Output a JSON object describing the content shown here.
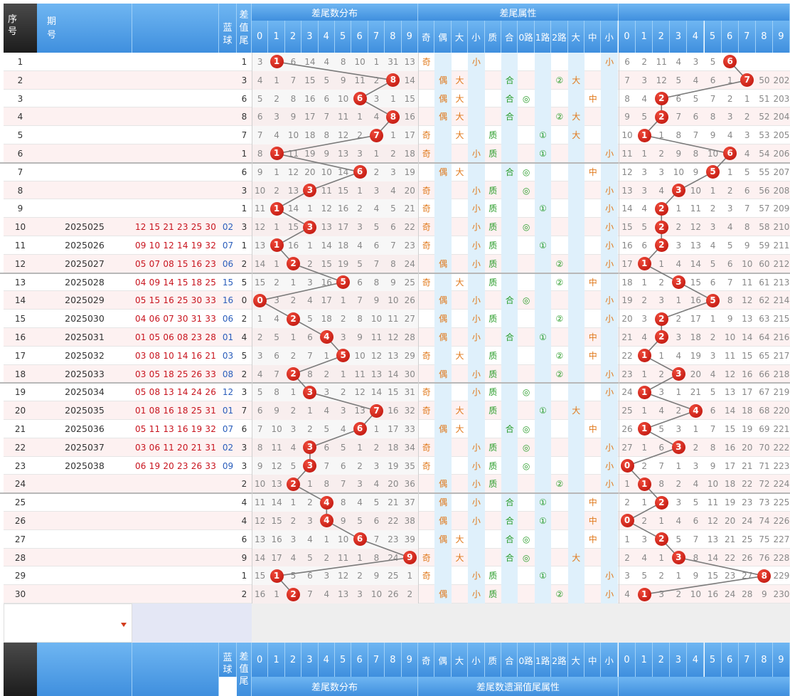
{
  "header": {
    "seq_label": "序\n号",
    "period_label": "期\n号",
    "blue_label": "蓝\n球",
    "diff_tail_label": "差\n值\n尾",
    "dist_group": "差尾数分布",
    "attr_group": "差尾属性",
    "digits": [
      "0",
      "1",
      "2",
      "3",
      "4",
      "5",
      "6",
      "7",
      "8",
      "9"
    ],
    "attrs": [
      "奇",
      "偶",
      "大",
      "小",
      "质",
      "合",
      "0路",
      "1路",
      "2路",
      "大",
      "中",
      "小"
    ],
    "right_digits": [
      "0",
      "1",
      "2",
      "3",
      "4",
      "5",
      "6",
      "7",
      "8",
      "9"
    ]
  },
  "footer": {
    "seq_label": "序\n号",
    "blue_label": "蓝\n球",
    "diff_tail_label": "差\n值\n尾",
    "dist_group": "差尾数分布",
    "attr_group": "差尾数遗漏值尾属性"
  },
  "colors": {
    "accent": "#3f8fde",
    "ball": "#d0160e",
    "odd": "#e0781a",
    "num_red": "#c8141e",
    "blue_num": "#2a5dbb"
  },
  "rows": [
    {
      "seq": "1",
      "period": "",
      "reds": "",
      "blue": "",
      "tail": "1",
      "dist": [
        "3",
        "1",
        "6",
        "14",
        "4",
        "8",
        "10",
        "1",
        "31",
        "13"
      ],
      "attrs": [
        "奇",
        "",
        "",
        "小",
        "",
        "",
        "",
        "",
        "",
        "",
        "",
        "小"
      ],
      "right": [
        "6",
        "2",
        "11",
        "4",
        "3",
        "5",
        "6",
        "",
        "",
        ""
      ]
    },
    {
      "seq": "2",
      "period": "",
      "reds": "",
      "blue": "",
      "tail": "3",
      "dist": [
        "4",
        "1",
        "7",
        "15",
        "5",
        "9",
        "11",
        "2",
        "8",
        "14"
      ],
      "attrs": [
        "",
        "偶",
        "大",
        "",
        "",
        "合",
        "",
        "",
        "②",
        "大",
        "",
        ""
      ],
      "right": [
        "7",
        "3",
        "12",
        "5",
        "4",
        "6",
        "1",
        "7",
        "50",
        "202"
      ]
    },
    {
      "seq": "3",
      "period": "",
      "reds": "",
      "blue": "",
      "tail": "6",
      "dist": [
        "5",
        "2",
        "8",
        "16",
        "6",
        "10",
        "6",
        "3",
        "1",
        "15"
      ],
      "attrs": [
        "",
        "偶",
        "大",
        "",
        "",
        "合",
        "◎",
        "",
        "",
        "",
        "中",
        ""
      ],
      "right": [
        "8",
        "4",
        "2",
        "6",
        "5",
        "7",
        "2",
        "1",
        "51",
        "203"
      ]
    },
    {
      "seq": "4",
      "period": "",
      "reds": "",
      "blue": "",
      "tail": "8",
      "dist": [
        "6",
        "3",
        "9",
        "17",
        "7",
        "11",
        "1",
        "4",
        "8",
        "16"
      ],
      "attrs": [
        "",
        "偶",
        "大",
        "",
        "",
        "合",
        "",
        "",
        "②",
        "大",
        "",
        ""
      ],
      "right": [
        "9",
        "5",
        "2",
        "7",
        "6",
        "8",
        "3",
        "2",
        "52",
        "204"
      ]
    },
    {
      "seq": "5",
      "period": "",
      "reds": "",
      "blue": "",
      "tail": "7",
      "dist": [
        "7",
        "4",
        "10",
        "18",
        "8",
        "12",
        "2",
        "7",
        "1",
        "17"
      ],
      "attrs": [
        "奇",
        "",
        "大",
        "",
        "质",
        "",
        "",
        "①",
        "",
        "大",
        "",
        ""
      ],
      "right": [
        "10",
        "1",
        "1",
        "8",
        "7",
        "9",
        "4",
        "3",
        "53",
        "205"
      ]
    },
    {
      "seq": "6",
      "period": "",
      "reds": "",
      "blue": "",
      "tail": "1",
      "dist": [
        "8",
        "1",
        "11",
        "19",
        "9",
        "13",
        "3",
        "1",
        "2",
        "18"
      ],
      "attrs": [
        "奇",
        "",
        "",
        "小",
        "质",
        "",
        "",
        "①",
        "",
        "",
        "",
        "小"
      ],
      "right": [
        "11",
        "1",
        "2",
        "9",
        "8",
        "10",
        "6",
        "4",
        "54",
        "206"
      ]
    },
    {
      "seq": "7",
      "period": "",
      "reds": "",
      "blue": "",
      "tail": "6",
      "dist": [
        "9",
        "1",
        "12",
        "20",
        "10",
        "14",
        "6",
        "2",
        "3",
        "19"
      ],
      "attrs": [
        "",
        "偶",
        "大",
        "",
        "",
        "合",
        "◎",
        "",
        "",
        "",
        "中",
        ""
      ],
      "right": [
        "12",
        "3",
        "3",
        "10",
        "9",
        "5",
        "1",
        "5",
        "55",
        "207"
      ]
    },
    {
      "seq": "8",
      "period": "",
      "reds": "",
      "blue": "",
      "tail": "3",
      "dist": [
        "10",
        "2",
        "13",
        "3",
        "11",
        "15",
        "1",
        "3",
        "4",
        "20"
      ],
      "attrs": [
        "奇",
        "",
        "",
        "小",
        "质",
        "",
        "◎",
        "",
        "",
        "",
        "",
        "小"
      ],
      "right": [
        "13",
        "3",
        "4",
        "3",
        "10",
        "1",
        "2",
        "6",
        "56",
        "208"
      ]
    },
    {
      "seq": "9",
      "period": "",
      "reds": "",
      "blue": "",
      "tail": "1",
      "dist": [
        "11",
        "1",
        "14",
        "1",
        "12",
        "16",
        "2",
        "4",
        "5",
        "21"
      ],
      "attrs": [
        "奇",
        "",
        "",
        "小",
        "质",
        "",
        "",
        "①",
        "",
        "",
        "",
        "小"
      ],
      "right": [
        "14",
        "4",
        "2",
        "1",
        "11",
        "2",
        "3",
        "7",
        "57",
        "209"
      ]
    },
    {
      "seq": "10",
      "period": "2025025",
      "reds": "12 15 21 23 25 30",
      "blue": "02",
      "tail": "3",
      "dist": [
        "12",
        "1",
        "15",
        "3",
        "13",
        "17",
        "3",
        "5",
        "6",
        "22"
      ],
      "attrs": [
        "奇",
        "",
        "",
        "小",
        "质",
        "",
        "◎",
        "",
        "",
        "",
        "",
        "小"
      ],
      "right": [
        "15",
        "5",
        "2",
        "2",
        "12",
        "3",
        "4",
        "8",
        "58",
        "210"
      ]
    },
    {
      "seq": "11",
      "period": "2025026",
      "reds": "09 10 12 14 19 32",
      "blue": "07",
      "tail": "1",
      "dist": [
        "13",
        "1",
        "16",
        "1",
        "14",
        "18",
        "4",
        "6",
        "7",
        "23"
      ],
      "attrs": [
        "奇",
        "",
        "",
        "小",
        "质",
        "",
        "",
        "①",
        "",
        "",
        "",
        "小"
      ],
      "right": [
        "16",
        "6",
        "2",
        "3",
        "13",
        "4",
        "5",
        "9",
        "59",
        "211"
      ]
    },
    {
      "seq": "12",
      "period": "2025027",
      "reds": "05 07 08 15 16 23",
      "blue": "06",
      "tail": "2",
      "dist": [
        "14",
        "1",
        "2",
        "2",
        "15",
        "19",
        "5",
        "7",
        "8",
        "24"
      ],
      "attrs": [
        "",
        "偶",
        "",
        "小",
        "质",
        "",
        "",
        "",
        "②",
        "",
        "",
        "小"
      ],
      "right": [
        "17",
        "1",
        "1",
        "4",
        "14",
        "5",
        "6",
        "10",
        "60",
        "212"
      ]
    },
    {
      "seq": "13",
      "period": "2025028",
      "reds": "04 09 14 15 18 25",
      "blue": "15",
      "tail": "5",
      "dist": [
        "15",
        "2",
        "1",
        "3",
        "16",
        "5",
        "6",
        "8",
        "9",
        "25"
      ],
      "attrs": [
        "奇",
        "",
        "大",
        "",
        "质",
        "",
        "",
        "",
        "②",
        "",
        "中",
        ""
      ],
      "right": [
        "18",
        "1",
        "2",
        "3",
        "15",
        "6",
        "7",
        "11",
        "61",
        "213"
      ]
    },
    {
      "seq": "14",
      "period": "2025029",
      "reds": "05 15 16 25 30 33",
      "blue": "16",
      "tail": "0",
      "dist": [
        "0",
        "3",
        "2",
        "4",
        "17",
        "1",
        "7",
        "9",
        "10",
        "26"
      ],
      "attrs": [
        "",
        "偶",
        "",
        "小",
        "",
        "合",
        "◎",
        "",
        "",
        "",
        "",
        "小"
      ],
      "right": [
        "19",
        "2",
        "3",
        "1",
        "16",
        "5",
        "8",
        "12",
        "62",
        "214"
      ]
    },
    {
      "seq": "15",
      "period": "2025030",
      "reds": "04 06 07 30 31 33",
      "blue": "06",
      "tail": "2",
      "dist": [
        "1",
        "4",
        "2",
        "5",
        "18",
        "2",
        "8",
        "10",
        "11",
        "27"
      ],
      "attrs": [
        "",
        "偶",
        "",
        "小",
        "质",
        "",
        "",
        "",
        "②",
        "",
        "",
        "小"
      ],
      "right": [
        "20",
        "3",
        "2",
        "2",
        "17",
        "1",
        "9",
        "13",
        "63",
        "215"
      ]
    },
    {
      "seq": "16",
      "period": "2025031",
      "reds": "01 05 06 08 23 28",
      "blue": "01",
      "tail": "4",
      "dist": [
        "2",
        "5",
        "1",
        "6",
        "4",
        "3",
        "9",
        "11",
        "12",
        "28"
      ],
      "attrs": [
        "",
        "偶",
        "",
        "小",
        "",
        "合",
        "",
        "①",
        "",
        "",
        "中",
        ""
      ],
      "right": [
        "21",
        "4",
        "2",
        "3",
        "18",
        "2",
        "10",
        "14",
        "64",
        "216"
      ]
    },
    {
      "seq": "17",
      "period": "2025032",
      "reds": "03 08 10 14 16 21",
      "blue": "03",
      "tail": "5",
      "dist": [
        "3",
        "6",
        "2",
        "7",
        "1",
        "5",
        "10",
        "12",
        "13",
        "29"
      ],
      "attrs": [
        "奇",
        "",
        "大",
        "",
        "质",
        "",
        "",
        "",
        "②",
        "",
        "中",
        ""
      ],
      "right": [
        "22",
        "1",
        "1",
        "4",
        "19",
        "3",
        "11",
        "15",
        "65",
        "217"
      ]
    },
    {
      "seq": "18",
      "period": "2025033",
      "reds": "03 05 18 25 26 33",
      "blue": "08",
      "tail": "2",
      "dist": [
        "4",
        "7",
        "2",
        "8",
        "2",
        "1",
        "11",
        "13",
        "14",
        "30"
      ],
      "attrs": [
        "",
        "偶",
        "",
        "小",
        "质",
        "",
        "",
        "",
        "②",
        "",
        "",
        "小"
      ],
      "right": [
        "23",
        "1",
        "2",
        "3",
        "20",
        "4",
        "12",
        "16",
        "66",
        "218"
      ]
    },
    {
      "seq": "19",
      "period": "2025034",
      "reds": "05 08 13 14 24 26",
      "blue": "12",
      "tail": "3",
      "dist": [
        "5",
        "8",
        "1",
        "3",
        "3",
        "2",
        "12",
        "14",
        "15",
        "31"
      ],
      "attrs": [
        "奇",
        "",
        "",
        "小",
        "质",
        "",
        "◎",
        "",
        "",
        "",
        "",
        "小"
      ],
      "right": [
        "24",
        "1",
        "3",
        "1",
        "21",
        "5",
        "13",
        "17",
        "67",
        "219"
      ]
    },
    {
      "seq": "20",
      "period": "2025035",
      "reds": "01 08 16 18 25 31",
      "blue": "01",
      "tail": "7",
      "dist": [
        "6",
        "9",
        "2",
        "1",
        "4",
        "3",
        "13",
        "7",
        "16",
        "32"
      ],
      "attrs": [
        "奇",
        "",
        "大",
        "",
        "质",
        "",
        "",
        "①",
        "",
        "大",
        "",
        ""
      ],
      "right": [
        "25",
        "1",
        "4",
        "2",
        "4",
        "6",
        "14",
        "18",
        "68",
        "220"
      ]
    },
    {
      "seq": "21",
      "period": "2025036",
      "reds": "05 11 13 16 19 32",
      "blue": "07",
      "tail": "6",
      "dist": [
        "7",
        "10",
        "3",
        "2",
        "5",
        "4",
        "6",
        "1",
        "17",
        "33"
      ],
      "attrs": [
        "",
        "偶",
        "大",
        "",
        "",
        "合",
        "◎",
        "",
        "",
        "",
        "中",
        ""
      ],
      "right": [
        "26",
        "1",
        "5",
        "3",
        "1",
        "7",
        "15",
        "19",
        "69",
        "221"
      ]
    },
    {
      "seq": "22",
      "period": "2025037",
      "reds": "03 06 11 20 21 31",
      "blue": "02",
      "tail": "3",
      "dist": [
        "8",
        "11",
        "4",
        "3",
        "6",
        "5",
        "1",
        "2",
        "18",
        "34"
      ],
      "attrs": [
        "奇",
        "",
        "",
        "小",
        "质",
        "",
        "◎",
        "",
        "",
        "",
        "",
        "小"
      ],
      "right": [
        "27",
        "1",
        "6",
        "3",
        "2",
        "8",
        "16",
        "20",
        "70",
        "222"
      ]
    },
    {
      "seq": "23",
      "period": "2025038",
      "reds": "06 19 20 23 26 33",
      "blue": "09",
      "tail": "3",
      "dist": [
        "9",
        "12",
        "5",
        "3",
        "7",
        "6",
        "2",
        "3",
        "19",
        "35"
      ],
      "attrs": [
        "奇",
        "",
        "",
        "小",
        "质",
        "",
        "◎",
        "",
        "",
        "",
        "",
        "小"
      ],
      "right": [
        "0",
        "2",
        "7",
        "1",
        "3",
        "9",
        "17",
        "21",
        "71",
        "223"
      ]
    },
    {
      "seq": "24",
      "period": "",
      "reds": "",
      "blue": "",
      "tail": "2",
      "dist": [
        "10",
        "13",
        "2",
        "1",
        "8",
        "7",
        "3",
        "4",
        "20",
        "36"
      ],
      "attrs": [
        "",
        "偶",
        "",
        "小",
        "质",
        "",
        "",
        "",
        "②",
        "",
        "",
        "小"
      ],
      "right": [
        "1",
        "1",
        "8",
        "2",
        "4",
        "10",
        "18",
        "22",
        "72",
        "224"
      ]
    },
    {
      "seq": "25",
      "period": "",
      "reds": "",
      "blue": "",
      "tail": "4",
      "dist": [
        "11",
        "14",
        "1",
        "2",
        "4",
        "8",
        "4",
        "5",
        "21",
        "37"
      ],
      "attrs": [
        "",
        "偶",
        "",
        "小",
        "",
        "合",
        "",
        "①",
        "",
        "",
        "中",
        ""
      ],
      "right": [
        "2",
        "1",
        "2",
        "3",
        "5",
        "11",
        "19",
        "23",
        "73",
        "225"
      ]
    },
    {
      "seq": "26",
      "period": "",
      "reds": "",
      "blue": "",
      "tail": "4",
      "dist": [
        "12",
        "15",
        "2",
        "3",
        "4",
        "9",
        "5",
        "6",
        "22",
        "38"
      ],
      "attrs": [
        "",
        "偶",
        "",
        "小",
        "",
        "合",
        "",
        "①",
        "",
        "",
        "中",
        ""
      ],
      "right": [
        "0",
        "2",
        "1",
        "4",
        "6",
        "12",
        "20",
        "24",
        "74",
        "226"
      ]
    },
    {
      "seq": "27",
      "period": "",
      "reds": "",
      "blue": "",
      "tail": "6",
      "dist": [
        "13",
        "16",
        "3",
        "4",
        "1",
        "10",
        "6",
        "7",
        "23",
        "39"
      ],
      "attrs": [
        "",
        "偶",
        "大",
        "",
        "",
        "合",
        "◎",
        "",
        "",
        "",
        "中",
        ""
      ],
      "right": [
        "1",
        "3",
        "2",
        "5",
        "7",
        "13",
        "21",
        "25",
        "75",
        "227"
      ]
    },
    {
      "seq": "28",
      "period": "",
      "reds": "",
      "blue": "",
      "tail": "9",
      "dist": [
        "14",
        "17",
        "4",
        "5",
        "2",
        "11",
        "1",
        "8",
        "24",
        "9"
      ],
      "attrs": [
        "奇",
        "",
        "大",
        "",
        "",
        "合",
        "◎",
        "",
        "",
        "大",
        "",
        ""
      ],
      "right": [
        "2",
        "4",
        "1",
        "3",
        "8",
        "14",
        "22",
        "26",
        "76",
        "228"
      ]
    },
    {
      "seq": "29",
      "period": "",
      "reds": "",
      "blue": "",
      "tail": "1",
      "dist": [
        "15",
        "1",
        "5",
        "6",
        "3",
        "12",
        "2",
        "9",
        "25",
        "1"
      ],
      "attrs": [
        "奇",
        "",
        "",
        "小",
        "质",
        "",
        "",
        "①",
        "",
        "",
        "",
        "小"
      ],
      "right": [
        "3",
        "5",
        "2",
        "1",
        "9",
        "15",
        "23",
        "27",
        "8",
        "229"
      ]
    },
    {
      "seq": "30",
      "period": "",
      "reds": "",
      "blue": "",
      "tail": "2",
      "dist": [
        "16",
        "1",
        "2",
        "7",
        "4",
        "13",
        "3",
        "10",
        "26",
        "2"
      ],
      "attrs": [
        "",
        "偶",
        "",
        "小",
        "质",
        "",
        "",
        "",
        "②",
        "",
        "",
        "小"
      ],
      "right": [
        "4",
        "1",
        "3",
        "2",
        "10",
        "16",
        "24",
        "28",
        "9",
        "230"
      ]
    }
  ],
  "ball_dist": [
    1,
    8,
    6,
    8,
    7,
    1,
    6,
    3,
    1,
    3,
    1,
    2,
    5,
    0,
    2,
    4,
    5,
    2,
    3,
    7,
    6,
    3,
    3,
    2,
    4,
    4,
    6,
    9,
    1,
    2
  ],
  "ball_right": [
    6,
    7,
    2,
    2,
    1,
    6,
    5,
    3,
    2,
    2,
    2,
    1,
    3,
    5,
    2,
    2,
    1,
    3,
    1,
    4,
    1,
    3,
    0,
    1,
    2,
    0,
    2,
    3,
    8,
    1
  ]
}
